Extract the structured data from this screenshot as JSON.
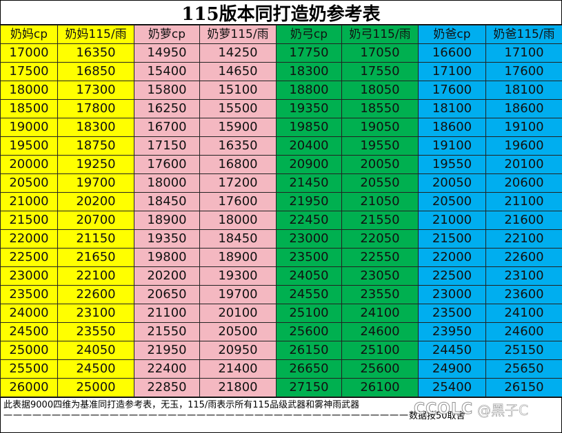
{
  "title": "115版本同打造奶参考表",
  "columns": [
    {
      "label": "奶妈cp",
      "color": "#ffff00"
    },
    {
      "label": "奶妈115/雨",
      "color": "#ffff00"
    },
    {
      "label": "奶萝cp",
      "color": "#f4b8c1"
    },
    {
      "label": "奶萝115/雨",
      "color": "#f4b8c1"
    },
    {
      "label": "奶弓cp",
      "color": "#00b050"
    },
    {
      "label": "奶弓115/雨",
      "color": "#00b050"
    },
    {
      "label": "奶爸cp",
      "color": "#00aeef"
    },
    {
      "label": "奶爸115/雨",
      "color": "#00aeef"
    }
  ],
  "rows": [
    [
      "17000",
      "16350",
      "14950",
      "14250",
      "17750",
      "17050",
      "16600",
      "17100"
    ],
    [
      "17500",
      "16850",
      "15400",
      "14650",
      "18300",
      "17550",
      "17100",
      "17600"
    ],
    [
      "18000",
      "17300",
      "15800",
      "15100",
      "18800",
      "18050",
      "17600",
      "18100"
    ],
    [
      "18500",
      "17800",
      "16250",
      "15500",
      "19350",
      "18550",
      "18100",
      "18600"
    ],
    [
      "19000",
      "18300",
      "16700",
      "15900",
      "19850",
      "19050",
      "18600",
      "19100"
    ],
    [
      "19500",
      "18750",
      "17150",
      "16350",
      "20400",
      "19550",
      "19100",
      "19600"
    ],
    [
      "20000",
      "19250",
      "17600",
      "16800",
      "20900",
      "20050",
      "19550",
      "20100"
    ],
    [
      "20500",
      "19700",
      "18000",
      "17200",
      "21450",
      "20550",
      "20050",
      "20600"
    ],
    [
      "21000",
      "20200",
      "18450",
      "17600",
      "21950",
      "21050",
      "20500",
      "21100"
    ],
    [
      "21500",
      "20700",
      "18900",
      "18000",
      "22450",
      "21550",
      "21000",
      "21600"
    ],
    [
      "22000",
      "21150",
      "19350",
      "18450",
      "23000",
      "22050",
      "21500",
      "22100"
    ],
    [
      "22500",
      "21650",
      "19800",
      "18900",
      "23500",
      "22550",
      "22000",
      "22600"
    ],
    [
      "23000",
      "22100",
      "20200",
      "19300",
      "24050",
      "23050",
      "22500",
      "23100"
    ],
    [
      "23500",
      "22600",
      "20650",
      "19700",
      "24550",
      "23550",
      "23000",
      "23600"
    ],
    [
      "24000",
      "23100",
      "21100",
      "20100",
      "25100",
      "24100",
      "23500",
      "24100"
    ],
    [
      "24500",
      "23550",
      "21550",
      "20500",
      "25600",
      "24600",
      "23950",
      "24600"
    ],
    [
      "25000",
      "24050",
      "21950",
      "20950",
      "26150",
      "25100",
      "24450",
      "25150"
    ],
    [
      "25500",
      "24500",
      "22400",
      "21400",
      "26650",
      "25600",
      "24900",
      "25650"
    ],
    [
      "26000",
      "25000",
      "22850",
      "21800",
      "27150",
      "26100",
      "25400",
      "26150"
    ]
  ],
  "footer": {
    "note": "此表据9000四维为基准同打造参考表，无玉，115/雨表示所有115品级武器和雾神雨武器",
    "dashes": "一一一一一一一一一一一一一一一一一一一一一一一一一一一一一一一一一一一一一一一一一一",
    "rounding": "数据按50取舍"
  },
  "watermark": {
    "logo": "CCOLC",
    "handle": "@黑子C"
  }
}
